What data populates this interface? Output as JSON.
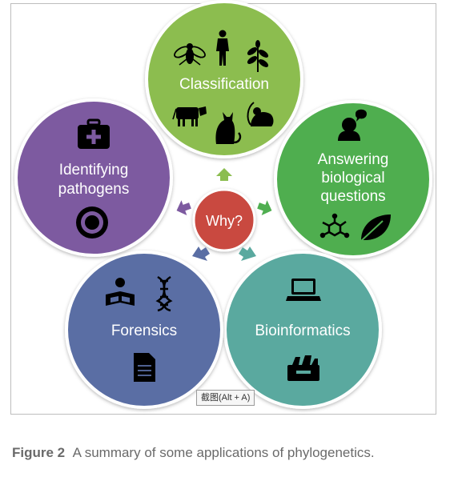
{
  "diagram": {
    "center": {
      "label": "Why?",
      "color": "#c9483f"
    },
    "nodes": [
      {
        "id": "classification",
        "label_lines": [
          "Classification"
        ],
        "color": "#8cbd50",
        "icons": [
          "fly-icon",
          "human-icon",
          "plant-icon",
          "cow-icon",
          "cat-icon",
          "mouse-icon"
        ]
      },
      {
        "id": "answering",
        "label_lines": [
          "Answering",
          "biological",
          "questions"
        ],
        "color": "#4fae50",
        "icons": [
          "speaking-person-icon",
          "molecule-icon",
          "leaf-icon"
        ]
      },
      {
        "id": "bioinformatics",
        "label_lines": [
          "Bioinformatics"
        ],
        "color": "#5aa99f",
        "icons": [
          "laptop-icon",
          "file-drawer-icon"
        ]
      },
      {
        "id": "forensics",
        "label_lines": [
          "Forensics"
        ],
        "color": "#5a6ea4",
        "icons": [
          "reader-icon",
          "dna-icon",
          "document-icon"
        ]
      },
      {
        "id": "pathogens",
        "label_lines": [
          "Identifying",
          "pathogens"
        ],
        "color": "#7d5aa0",
        "icons": [
          "medical-kit-icon",
          "target-icon"
        ]
      }
    ]
  },
  "tooltip": "截图(Alt + A)",
  "caption": {
    "label": "Figure 2",
    "text": "A summary of some applications of phylogenetics."
  }
}
